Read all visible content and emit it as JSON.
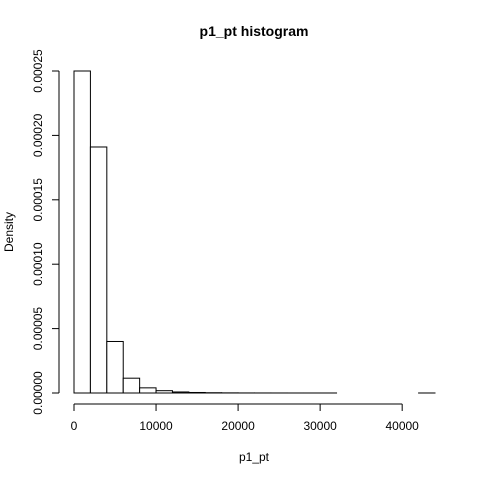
{
  "chart_data": {
    "type": "bar",
    "title": "p1_pt  histogram",
    "xlabel": "p1_pt",
    "ylabel": "Density",
    "xlim": [
      0,
      44000
    ],
    "ylim": [
      0,
      0.00025
    ],
    "x_ticks": [
      0,
      10000,
      20000,
      30000,
      40000
    ],
    "x_tick_labels": [
      "0",
      "10000",
      "20000",
      "30000",
      "40000"
    ],
    "y_ticks": [
      0,
      5e-05,
      0.0001,
      0.00015,
      0.0002,
      0.00025
    ],
    "y_tick_labels": [
      "0.00000",
      "0.00005",
      "0.00010",
      "0.00015",
      "0.00020",
      "0.00025"
    ],
    "bin_width": 2000,
    "bins": [
      {
        "x0": 0,
        "x1": 2000,
        "density": 0.00025
      },
      {
        "x0": 2000,
        "x1": 4000,
        "density": 0.000191
      },
      {
        "x0": 4000,
        "x1": 6000,
        "density": 4e-05
      },
      {
        "x0": 6000,
        "x1": 8000,
        "density": 1.15e-05
      },
      {
        "x0": 8000,
        "x1": 10000,
        "density": 4e-06
      },
      {
        "x0": 10000,
        "x1": 12000,
        "density": 1.8e-06
      },
      {
        "x0": 12000,
        "x1": 14000,
        "density": 8e-07
      },
      {
        "x0": 14000,
        "x1": 16000,
        "density": 4e-07
      },
      {
        "x0": 16000,
        "x1": 18000,
        "density": 2e-07
      },
      {
        "x0": 18000,
        "x1": 20000,
        "density": 1e-07
      },
      {
        "x0": 20000,
        "x1": 22000,
        "density": 5e-08
      },
      {
        "x0": 22000,
        "x1": 24000,
        "density": 3e-08
      },
      {
        "x0": 24000,
        "x1": 26000,
        "density": 2e-08
      },
      {
        "x0": 26000,
        "x1": 28000,
        "density": 1e-08
      },
      {
        "x0": 28000,
        "x1": 30000,
        "density": 1e-08
      },
      {
        "x0": 30000,
        "x1": 32000,
        "density": 1e-08
      },
      {
        "x0": 32000,
        "x1": 34000,
        "density": 0
      },
      {
        "x0": 34000,
        "x1": 36000,
        "density": 0
      },
      {
        "x0": 36000,
        "x1": 38000,
        "density": 0
      },
      {
        "x0": 38000,
        "x1": 40000,
        "density": 0
      },
      {
        "x0": 40000,
        "x1": 42000,
        "density": 0
      },
      {
        "x0": 42000,
        "x1": 44000,
        "density": 1e-08
      }
    ],
    "grid": false,
    "legend": "none"
  }
}
